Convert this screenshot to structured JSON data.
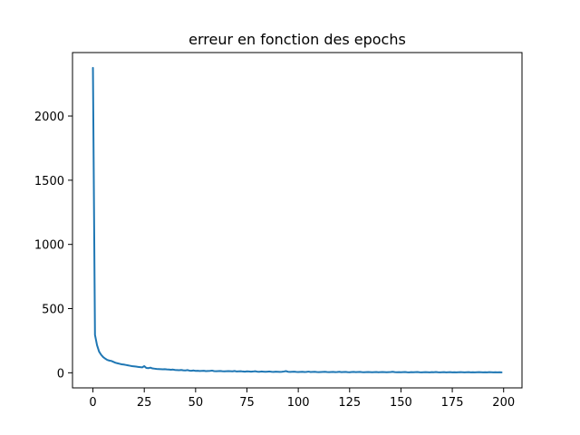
{
  "chart_data": {
    "type": "line",
    "title": "erreur en fonction des epochs",
    "xlabel": "",
    "ylabel": "",
    "xlim": [
      -9.95,
      208.95
    ],
    "ylim": [
      -117.57,
      2494.37
    ],
    "xticks": [
      0,
      25,
      50,
      75,
      100,
      125,
      150,
      175,
      200
    ],
    "yticks": [
      0,
      500,
      1000,
      1500,
      2000
    ],
    "grid": false,
    "colors": {
      "line": "#1f77b4",
      "axes": "#000000",
      "background": "#ffffff"
    },
    "series": [
      {
        "x": [
          0,
          1,
          2,
          3,
          4,
          5,
          6,
          7,
          8,
          9,
          10,
          11,
          12,
          13,
          14,
          15,
          16,
          17,
          18,
          19,
          20,
          21,
          22,
          23,
          24,
          25,
          26,
          27,
          28,
          29,
          30,
          31,
          32,
          33,
          34,
          35,
          36,
          37,
          38,
          39,
          40,
          41,
          42,
          43,
          44,
          45,
          46,
          47,
          48,
          49,
          50,
          51,
          52,
          53,
          54,
          55,
          56,
          57,
          58,
          59,
          60,
          61,
          62,
          63,
          64,
          65,
          66,
          67,
          68,
          69,
          70,
          71,
          72,
          73,
          74,
          75,
          76,
          77,
          78,
          79,
          80,
          81,
          82,
          83,
          84,
          85,
          86,
          87,
          88,
          89,
          90,
          91,
          92,
          93,
          94,
          95,
          96,
          97,
          98,
          99,
          100,
          101,
          102,
          103,
          104,
          105,
          106,
          107,
          108,
          109,
          110,
          111,
          112,
          113,
          114,
          115,
          116,
          117,
          118,
          119,
          120,
          121,
          122,
          123,
          124,
          125,
          126,
          127,
          128,
          129,
          130,
          131,
          132,
          133,
          134,
          135,
          136,
          137,
          138,
          139,
          140,
          141,
          142,
          143,
          144,
          145,
          146,
          147,
          148,
          149,
          150,
          151,
          152,
          153,
          154,
          155,
          156,
          157,
          158,
          159,
          160,
          161,
          162,
          163,
          164,
          165,
          166,
          167,
          168,
          169,
          170,
          171,
          172,
          173,
          174,
          175,
          176,
          177,
          178,
          179,
          180,
          181,
          182,
          183,
          184,
          185,
          186,
          187,
          188,
          189,
          190,
          191,
          192,
          193,
          194,
          195,
          196,
          197,
          198,
          199
        ],
        "values": [
          2375,
          295,
          215,
          165,
          140,
          122,
          110,
          100,
          95,
          92,
          85,
          78,
          74,
          70,
          66,
          64,
          61,
          58,
          55,
          52,
          50,
          48,
          46,
          44,
          42,
          52,
          38,
          36,
          40,
          34,
          32,
          30,
          29,
          28,
          27,
          28,
          26,
          25,
          24,
          25,
          22,
          21,
          20,
          22,
          19,
          18,
          21,
          17,
          16,
          18,
          15,
          16,
          14,
          15,
          16,
          13,
          14,
          15,
          17,
          13,
          12,
          13,
          14,
          12,
          11,
          12,
          13,
          12,
          11,
          14,
          10,
          11,
          12,
          10,
          9,
          11,
          10,
          9,
          10,
          12,
          9,
          8,
          10,
          9,
          8,
          9,
          10,
          8,
          7,
          9,
          8,
          7,
          8,
          10,
          13,
          8,
          7,
          8,
          9,
          7,
          6,
          7,
          8,
          6,
          7,
          9,
          6,
          7,
          8,
          6,
          5,
          6,
          7,
          8,
          6,
          5,
          6,
          7,
          5,
          6,
          8,
          5,
          6,
          7,
          5,
          4,
          6,
          7,
          5,
          6,
          7,
          5,
          4,
          5,
          6,
          5,
          4,
          5,
          6,
          4,
          5,
          6,
          5,
          4,
          5,
          6,
          8,
          5,
          4,
          5,
          4,
          5,
          6,
          4,
          3,
          5,
          4,
          5,
          6,
          4,
          3,
          4,
          5,
          4,
          3,
          5,
          4,
          6,
          4,
          3,
          4,
          5,
          3,
          4,
          5,
          3,
          4,
          3,
          4,
          5,
          4,
          3,
          4,
          5,
          3,
          4,
          3,
          4,
          5,
          4,
          3,
          4,
          3,
          5,
          4,
          3,
          4,
          3,
          4,
          3
        ]
      }
    ]
  }
}
